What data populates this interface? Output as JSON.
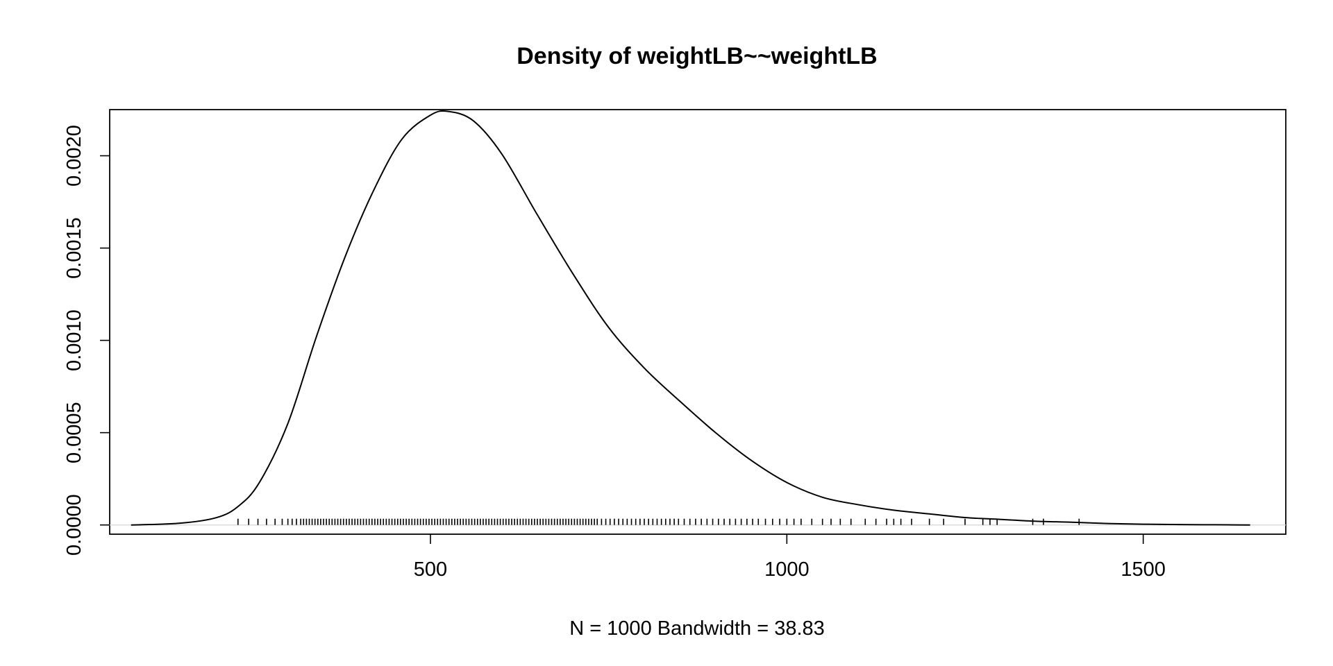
{
  "chart_data": {
    "type": "line",
    "title": "Density of weightLB~~weightLB",
    "xlabel": "N = 1000   Bandwidth = 38.83",
    "ylabel": "",
    "xlim": [
      50,
      1700
    ],
    "ylim": [
      -5e-05,
      0.00225
    ],
    "xticks": [
      500,
      1000,
      1500
    ],
    "xtick_labels": [
      "500",
      "1000",
      "1500"
    ],
    "yticks": [
      0,
      0.0005,
      0.001,
      0.0015,
      0.002
    ],
    "ytick_labels": [
      "0.0000",
      "0.0005",
      "0.0010",
      "0.0015",
      "0.0020"
    ],
    "grid": false,
    "zero_line": true,
    "series": [
      {
        "x": [
          80,
          150,
          200,
          230,
          260,
          300,
          340,
          380,
          420,
          460,
          500,
          525,
          560,
          600,
          650,
          700,
          750,
          800,
          850,
          900,
          950,
          1000,
          1050,
          1100,
          1150,
          1200,
          1250,
          1300,
          1350,
          1400,
          1450,
          1500,
          1550,
          1600,
          1650
        ],
        "y": [
          0.0,
          1e-05,
          4e-05,
          0.0001,
          0.00023,
          0.00055,
          0.00102,
          0.00145,
          0.00181,
          0.00209,
          0.00222,
          0.00224,
          0.00219,
          0.00201,
          0.00168,
          0.00136,
          0.00107,
          0.00085,
          0.00067,
          0.0005,
          0.00035,
          0.00023,
          0.00015,
          0.00011,
          8e-05,
          6e-05,
          4e-05,
          3e-05,
          2e-05,
          1.5e-05,
          8e-06,
          4e-06,
          2e-06,
          1e-06,
          0.0
        ]
      }
    ],
    "rug": [
      230,
      245,
      258,
      270,
      282,
      292,
      300,
      306,
      312,
      318,
      322,
      326,
      330,
      334,
      338,
      342,
      346,
      350,
      354,
      358,
      362,
      366,
      370,
      374,
      378,
      382,
      386,
      390,
      394,
      398,
      402,
      406,
      410,
      414,
      418,
      422,
      426,
      430,
      434,
      438,
      442,
      446,
      450,
      454,
      458,
      462,
      466,
      470,
      474,
      478,
      482,
      486,
      490,
      494,
      498,
      502,
      506,
      510,
      514,
      518,
      522,
      526,
      530,
      534,
      538,
      542,
      546,
      550,
      554,
      558,
      562,
      566,
      570,
      574,
      578,
      582,
      586,
      590,
      594,
      598,
      602,
      606,
      610,
      614,
      618,
      622,
      626,
      630,
      634,
      638,
      642,
      646,
      650,
      654,
      658,
      662,
      666,
      670,
      674,
      678,
      682,
      686,
      690,
      694,
      698,
      702,
      706,
      710,
      714,
      718,
      722,
      726,
      730,
      734,
      740,
      746,
      752,
      758,
      764,
      770,
      776,
      782,
      788,
      794,
      800,
      806,
      812,
      818,
      824,
      830,
      836,
      842,
      848,
      856,
      864,
      872,
      880,
      888,
      896,
      904,
      912,
      920,
      928,
      936,
      944,
      952,
      960,
      970,
      980,
      990,
      1000,
      1010,
      1020,
      1035,
      1050,
      1062,
      1075,
      1090,
      1110,
      1125,
      1140,
      1150,
      1160,
      1175,
      1200,
      1220,
      1250,
      1275,
      1285,
      1295,
      1345,
      1360,
      1410
    ]
  }
}
